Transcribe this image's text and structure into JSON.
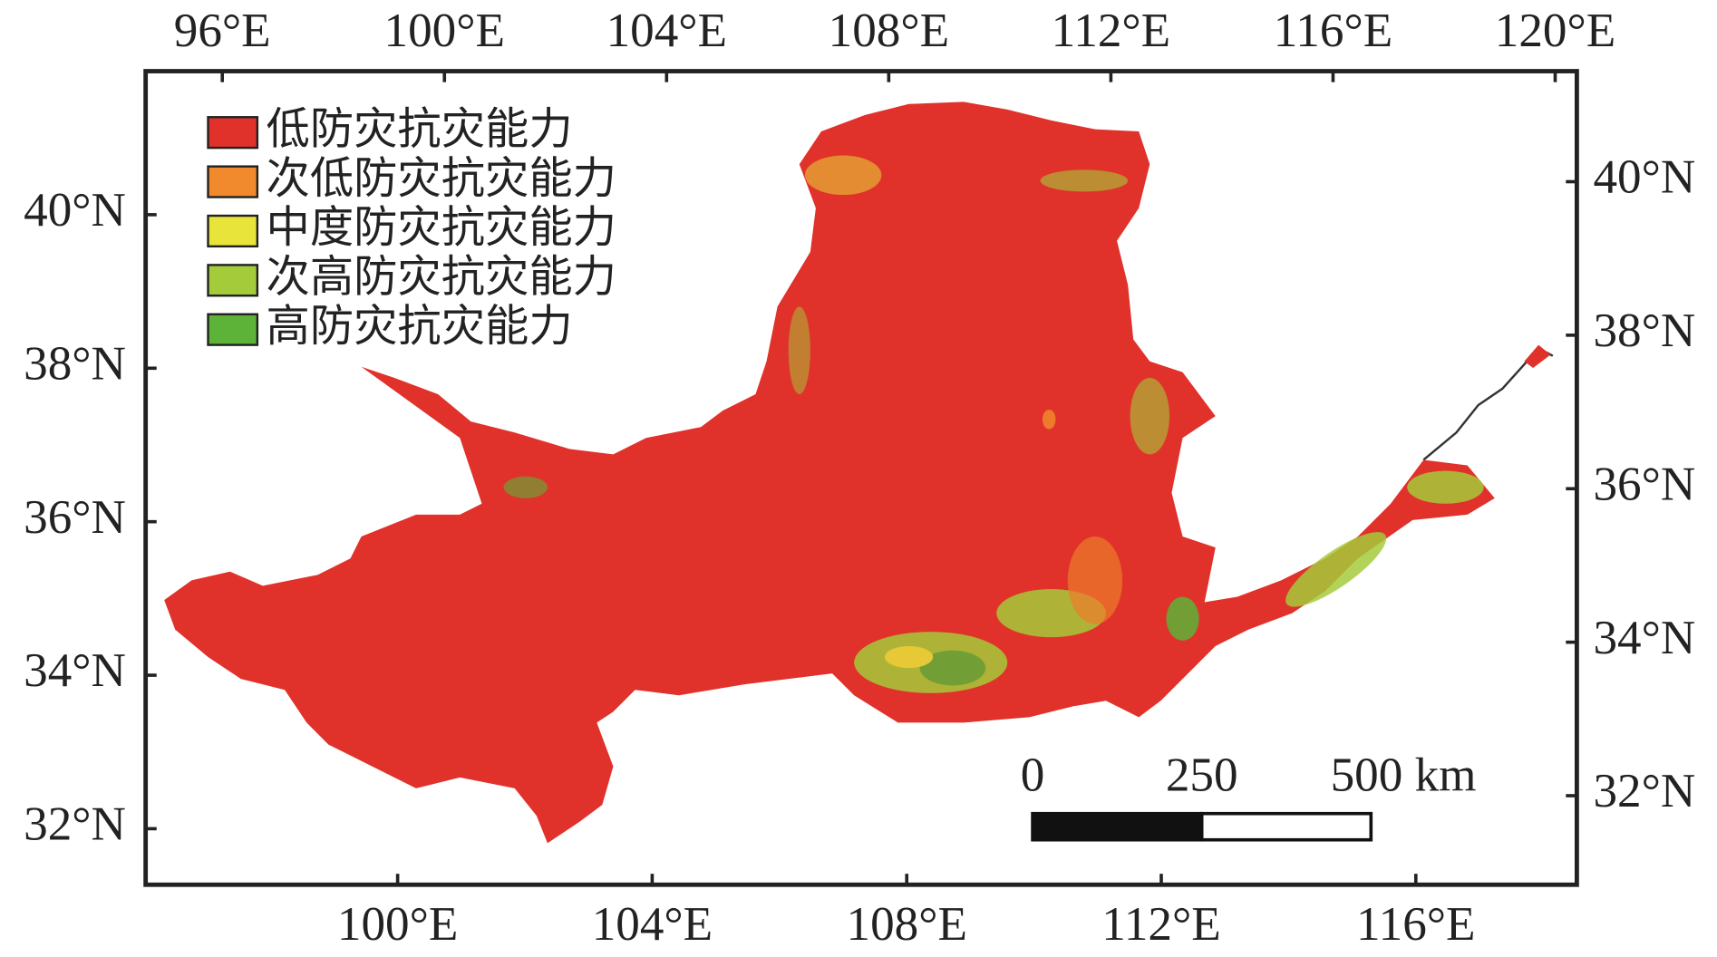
{
  "map": {
    "top_axis": {
      "lim": [
        94.62,
        120.39
      ],
      "ticks": [
        {
          "value": 96,
          "label": "96°E"
        },
        {
          "value": 100,
          "label": "100°E"
        },
        {
          "value": 104,
          "label": "104°E"
        },
        {
          "value": 108,
          "label": "108°E"
        },
        {
          "value": 112,
          "label": "112°E"
        },
        {
          "value": 116,
          "label": "116°E"
        },
        {
          "value": 120,
          "label": "120°E"
        }
      ]
    },
    "bottom_axis": {
      "lim": [
        96.04,
        118.53
      ],
      "ticks": [
        {
          "value": 100,
          "label": "100°E"
        },
        {
          "value": 104,
          "label": "104°E"
        },
        {
          "value": 108,
          "label": "108°E"
        },
        {
          "value": 112,
          "label": "112°E"
        },
        {
          "value": 116,
          "label": "116°E"
        }
      ]
    },
    "left_axis": {
      "lim": [
        31.27,
        41.87
      ],
      "ticks": [
        {
          "value": 32,
          "label": "32°N"
        },
        {
          "value": 34,
          "label": "34°N"
        },
        {
          "value": 36,
          "label": "36°N"
        },
        {
          "value": 38,
          "label": "38°N"
        },
        {
          "value": 40,
          "label": "40°N"
        }
      ]
    },
    "right_axis": {
      "lim": [
        30.84,
        41.44
      ],
      "ticks": [
        {
          "value": 32,
          "label": "32°N"
        },
        {
          "value": 34,
          "label": "34°N"
        },
        {
          "value": 36,
          "label": "36°N"
        },
        {
          "value": 38,
          "label": "38°N"
        },
        {
          "value": 40,
          "label": "40°N"
        }
      ]
    },
    "legend": [
      {
        "label": "低防灾抗灾能力",
        "color": "#e0312a"
      },
      {
        "label": "次低防灾抗灾能力",
        "color": "#f08a2c"
      },
      {
        "label": "中度防灾抗灾能力",
        "color": "#e8e43a"
      },
      {
        "label": "次高防灾抗灾能力",
        "color": "#a4cc3a"
      },
      {
        "label": "高防灾抗灾能力",
        "color": "#5db338"
      }
    ],
    "scale_bar": {
      "lim": [
        0,
        500
      ],
      "ticks": [
        0,
        250,
        {
          "value": 500,
          "label": "500 km"
        }
      ]
    }
  }
}
